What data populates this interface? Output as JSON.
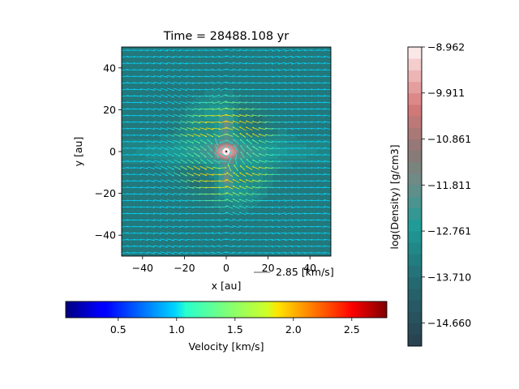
{
  "chart_data": {
    "type": "heatmap",
    "title": "Time = 28488.108 yr",
    "xlabel": "x [au]",
    "ylabel": "y [au]",
    "xlim": [
      -50,
      50
    ],
    "ylim": [
      -50,
      50
    ],
    "x_ticks": [
      -40,
      -20,
      0,
      20,
      40
    ],
    "y_ticks": [
      -40,
      -20,
      0,
      20,
      40
    ],
    "grid": false,
    "density_colorbar": {
      "label": "log(Density) [g/cm3]",
      "range": [
        -15.135,
        -8.962
      ],
      "ticks": [
        -8.962,
        -9.911,
        -10.861,
        -11.811,
        -12.761,
        -13.71,
        -14.66
      ],
      "tick_labels": [
        "−8.962",
        "−9.911",
        "−10.861",
        "−11.811",
        "−12.761",
        "−13.710",
        "−14.660"
      ],
      "levels": 26
    },
    "velocity_colorbar": {
      "label": "Velocity [km/s]",
      "range": [
        0.05,
        2.8
      ],
      "ticks": [
        0.5,
        1.0,
        1.5,
        2.0,
        2.5
      ],
      "tick_labels": [
        "0.5",
        "1.0",
        "1.5",
        "2.0",
        "2.5"
      ],
      "colormap": "jet"
    },
    "quiver_key": {
      "value": 2.85,
      "label": "2.85 [km/s]"
    },
    "colors": {
      "density_low": "#2b3f4e",
      "density_mid": "#1f9b96",
      "density_high": "#fdf4f4",
      "star": "#ffffff"
    }
  }
}
